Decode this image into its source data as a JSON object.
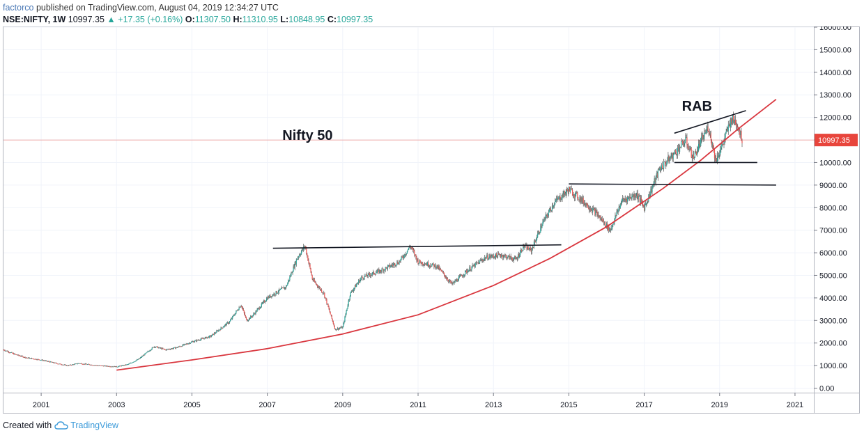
{
  "header": {
    "author": "factorco",
    "published_text": "published on TradingView.com, August 04, 2019 12:34:27 UTC",
    "symbol": "NSE:NIFTY, 1W",
    "last": "10997.35",
    "change": "+17.35 (+0.16%)",
    "open_label": "O:",
    "open": "11307.50",
    "high_label": "H:",
    "high": "11310.95",
    "low_label": "L:",
    "low": "10848.95",
    "close_label": "C:",
    "close": "10997.35"
  },
  "footer": {
    "created_with": "Created with",
    "brand": "TradingView"
  },
  "colors": {
    "curve": "#d9363e",
    "lines": "#131722",
    "price_label_bg": "#e8453c",
    "candle_up": "#26a69a",
    "candle_down": "#ef5350"
  },
  "chart_data": {
    "type": "line",
    "title": "",
    "xlabel": "",
    "ylabel": "",
    "x_ticks": [
      "2001",
      "2003",
      "2005",
      "2007",
      "2009",
      "2011",
      "2013",
      "2015",
      "2017",
      "2019",
      "2021"
    ],
    "y_ticks": [
      "0.00",
      "1000.00",
      "2000.00",
      "3000.00",
      "4000.00",
      "5000.00",
      "6000.00",
      "7000.00",
      "8000.00",
      "9000.00",
      "10000.00",
      "11000.00",
      "12000.00",
      "13000.00",
      "14000.00",
      "15000.00",
      "16000.00"
    ],
    "xlim": [
      2000.0,
      2021.5
    ],
    "ylim": [
      -200,
      16000
    ],
    "last_price_label": "10997.35",
    "last_price": 10997.35,
    "annotations": [
      {
        "text": "Nifty 50",
        "x": 2007.4,
        "y": 11000
      },
      {
        "text": "RAB",
        "x": 2018.0,
        "y": 12300
      }
    ],
    "series": [
      {
        "values_x": [
          2000.0,
          2000.3,
          2000.6,
          2001.0,
          2001.4,
          2001.7,
          2002.0,
          2002.5,
          2003.0,
          2003.3,
          2003.6,
          2004.0,
          2004.3,
          2004.6,
          2005.0,
          2005.5,
          2006.0,
          2006.3,
          2006.45,
          2006.6,
          2007.0,
          2007.5,
          2007.8,
          2008.0,
          2008.2,
          2008.5,
          2008.8,
          2009.0,
          2009.2,
          2009.5,
          2010.0,
          2010.5,
          2010.8,
          2011.0,
          2011.5,
          2011.9,
          2012.3,
          2012.8,
          2013.2,
          2013.6,
          2013.8,
          2014.0,
          2014.3,
          2014.6,
          2015.0,
          2015.3,
          2015.7,
          2016.1,
          2016.4,
          2016.8,
          2017.0,
          2017.4,
          2017.8,
          2018.1,
          2018.3,
          2018.7,
          2018.9,
          2019.1,
          2019.3,
          2019.45,
          2019.6
        ],
        "values_y": [
          1700,
          1500,
          1350,
          1250,
          1100,
          1000,
          1100,
          1000,
          950,
          1050,
          1300,
          1850,
          1700,
          1800,
          2050,
          2300,
          2950,
          3700,
          3000,
          3200,
          4000,
          4500,
          5800,
          6300,
          4800,
          4200,
          2600,
          2700,
          4200,
          4900,
          5200,
          5600,
          6300,
          5600,
          5400,
          4600,
          5200,
          5800,
          5900,
          5700,
          6300,
          6100,
          7300,
          8200,
          8800,
          8400,
          7800,
          7000,
          8300,
          8600,
          8000,
          9700,
          10400,
          11000,
          10200,
          11600,
          10100,
          10900,
          11900,
          11800,
          11000
        ]
      },
      {
        "name": "",
        "type": "curve",
        "values_x": [
          2003.0,
          2005.0,
          2007.0,
          2009.0,
          2011.0,
          2013.0,
          2014.5,
          2016.0,
          2017.5,
          2018.5,
          2019.5,
          2020.5
        ],
        "values_y": [
          800,
          1250,
          1750,
          2400,
          3250,
          4550,
          5750,
          7150,
          8850,
          10100,
          11500,
          12800
        ]
      }
    ],
    "trendlines": [
      {
        "x": [
          2007.15,
          2014.8
        ],
        "y": [
          6200,
          6350
        ]
      },
      {
        "x": [
          2015.0,
          2020.5
        ],
        "y": [
          9050,
          9000
        ]
      },
      {
        "x": [
          2017.8,
          2020.0
        ],
        "y": [
          10000,
          10000
        ]
      },
      {
        "x": [
          2017.8,
          2019.7
        ],
        "y": [
          11300,
          12300
        ]
      }
    ]
  }
}
